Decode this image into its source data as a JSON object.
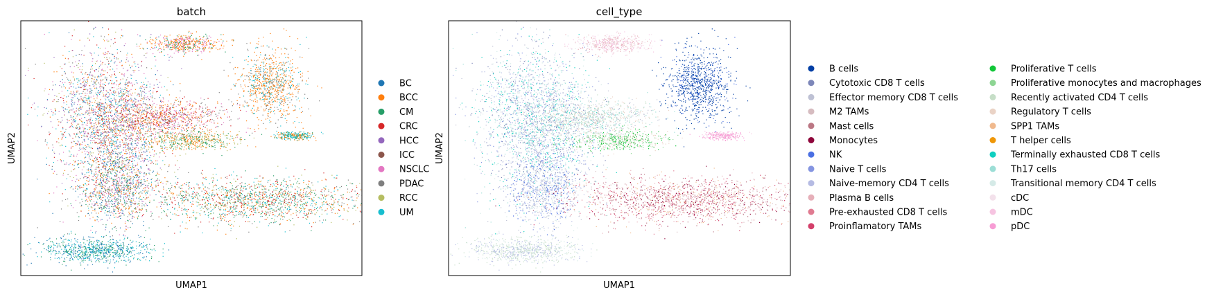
{
  "chart_data": [
    {
      "type": "scatter",
      "title": "batch",
      "xlabel": "UMAP1",
      "ylabel": "UMAP2",
      "grid": false,
      "ticks": false,
      "legend_placement": "right",
      "series": [
        {
          "name": "BC",
          "color": "#1f77b4"
        },
        {
          "name": "BCC",
          "color": "#ff7f0e"
        },
        {
          "name": "CM",
          "color": "#279e68"
        },
        {
          "name": "CRC",
          "color": "#d62728"
        },
        {
          "name": "HCC",
          "color": "#9467bd"
        },
        {
          "name": "ICC",
          "color": "#8c564b"
        },
        {
          "name": "NSCLC",
          "color": "#e377c2"
        },
        {
          "name": "PDAC",
          "color": "#7f7f7f"
        },
        {
          "name": "RCC",
          "color": "#b5bd61"
        },
        {
          "name": "UM",
          "color": "#17becf"
        }
      ]
    },
    {
      "type": "scatter",
      "title": "cell_type",
      "xlabel": "UMAP1",
      "ylabel": "UMAP2",
      "grid": false,
      "ticks": false,
      "legend_placement": "right, two columns",
      "series": [
        {
          "name": "B cells",
          "color": "#023fa5"
        },
        {
          "name": "Cytotoxic CD8 T cells",
          "color": "#7d87b9"
        },
        {
          "name": "Effector memory CD8 T cells",
          "color": "#bec1d4"
        },
        {
          "name": "M2 TAMs",
          "color": "#d6bcc0"
        },
        {
          "name": "Mast cells",
          "color": "#bb7784"
        },
        {
          "name": "Monocytes",
          "color": "#8e063b"
        },
        {
          "name": "NK",
          "color": "#4a6fe3"
        },
        {
          "name": "Naive T cells",
          "color": "#8595e1"
        },
        {
          "name": "Naive-memory CD4 T cells",
          "color": "#b5bbe3"
        },
        {
          "name": "Plasma B cells",
          "color": "#e6afb9"
        },
        {
          "name": "Pre-exhausted CD8 T cells",
          "color": "#e07b91"
        },
        {
          "name": "Proinflamatory TAMs",
          "color": "#d33f6a"
        },
        {
          "name": "Proliferative T cells",
          "color": "#11c638"
        },
        {
          "name": "Proliferative monocytes and macrophages",
          "color": "#8dd593"
        },
        {
          "name": "Recently activated CD4 T cells",
          "color": "#c6dec7"
        },
        {
          "name": "Regulatory T cells",
          "color": "#ead3c6"
        },
        {
          "name": "SPP1 TAMs",
          "color": "#f0b98d"
        },
        {
          "name": "T helper cells",
          "color": "#ef9708"
        },
        {
          "name": "Terminally exhausted CD8 T cells",
          "color": "#0fcfc0"
        },
        {
          "name": "Th17 cells",
          "color": "#9cded6"
        },
        {
          "name": "Transitional memory CD4 T cells",
          "color": "#d5eae7"
        },
        {
          "name": "cDC",
          "color": "#f3e1eb"
        },
        {
          "name": "mDC",
          "color": "#f6c4e1"
        },
        {
          "name": "pDC",
          "color": "#f79cd4"
        }
      ]
    }
  ]
}
